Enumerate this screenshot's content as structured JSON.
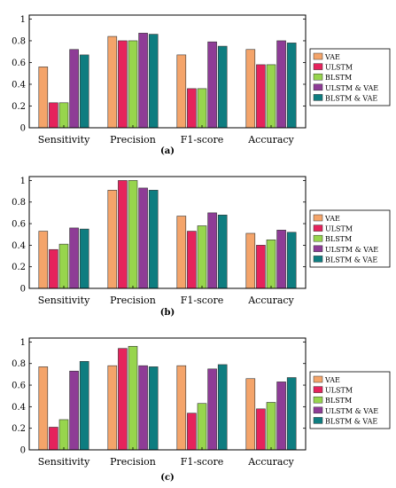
{
  "colors": {
    "VAE": "#F4A46A",
    "ULSTM": "#E5235C",
    "BLSTM": "#97D54D",
    "ULSTM & VAE": "#8E3C96",
    "BLSTM & VAE": "#0E7D80"
  },
  "chart_data": [
    {
      "type": "bar",
      "caption": "(a)",
      "categories": [
        "Sensitivity",
        "Precision",
        "F1-score",
        "Accuracy"
      ],
      "ylim": [
        0,
        1.0
      ],
      "yticks": [
        "0",
        "0.2",
        "0.4",
        "0.6",
        "0.8",
        "1"
      ],
      "grid": false,
      "legend_position": "right",
      "series": [
        {
          "name": "VAE",
          "values": [
            0.56,
            0.84,
            0.67,
            0.72
          ]
        },
        {
          "name": "ULSTM",
          "values": [
            0.23,
            0.8,
            0.36,
            0.58
          ]
        },
        {
          "name": "BLSTM",
          "values": [
            0.23,
            0.8,
            0.36,
            0.58
          ]
        },
        {
          "name": "ULSTM & VAE",
          "values": [
            0.72,
            0.87,
            0.79,
            0.8
          ]
        },
        {
          "name": "BLSTM & VAE",
          "values": [
            0.67,
            0.86,
            0.75,
            0.78
          ]
        }
      ]
    },
    {
      "type": "bar",
      "caption": "(b)",
      "categories": [
        "Sensitivity",
        "Precision",
        "F1-score",
        "Accuracy"
      ],
      "ylim": [
        0,
        1.0
      ],
      "yticks": [
        "0",
        "0.2",
        "0.4",
        "0.6",
        "0.8",
        "1"
      ],
      "grid": false,
      "legend_position": "right",
      "series": [
        {
          "name": "VAE",
          "values": [
            0.53,
            0.91,
            0.67,
            0.51
          ]
        },
        {
          "name": "ULSTM",
          "values": [
            0.36,
            1.0,
            0.53,
            0.4
          ]
        },
        {
          "name": "BLSTM",
          "values": [
            0.41,
            1.0,
            0.58,
            0.45
          ]
        },
        {
          "name": "ULSTM & VAE",
          "values": [
            0.56,
            0.93,
            0.7,
            0.54
          ]
        },
        {
          "name": "BLSTM & VAE",
          "values": [
            0.55,
            0.91,
            0.68,
            0.52
          ]
        }
      ]
    },
    {
      "type": "bar",
      "caption": "(c)",
      "categories": [
        "Sensitivity",
        "Precision",
        "F1-score",
        "Accuracy"
      ],
      "ylim": [
        0,
        1.0
      ],
      "yticks": [
        "0",
        "0.2",
        "0.4",
        "0.6",
        "0.8",
        "1"
      ],
      "grid": false,
      "legend_position": "right",
      "series": [
        {
          "name": "VAE",
          "values": [
            0.77,
            0.78,
            0.78,
            0.66
          ]
        },
        {
          "name": "ULSTM",
          "values": [
            0.21,
            0.94,
            0.34,
            0.38
          ]
        },
        {
          "name": "BLSTM",
          "values": [
            0.28,
            0.96,
            0.43,
            0.44
          ]
        },
        {
          "name": "ULSTM & VAE",
          "values": [
            0.73,
            0.78,
            0.75,
            0.63
          ]
        },
        {
          "name": "BLSTM & VAE",
          "values": [
            0.82,
            0.77,
            0.79,
            0.67
          ]
        }
      ]
    }
  ]
}
